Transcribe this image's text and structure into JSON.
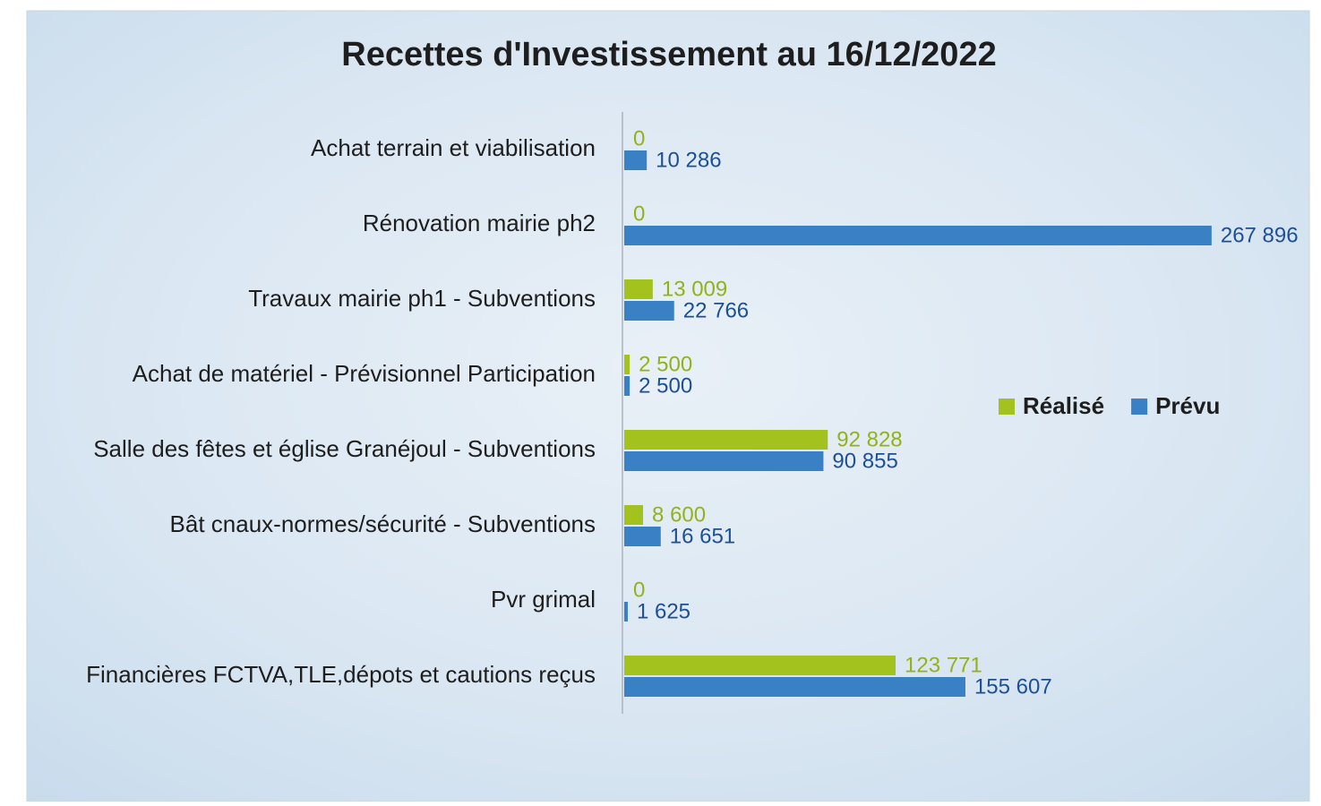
{
  "chart_data": {
    "type": "barh",
    "title": "Recettes d'Investissement au 16/12/2022",
    "categories": [
      "Achat terrain et viabilisation",
      "Rénovation mairie ph2",
      "Travaux mairie ph1 - Subventions",
      "Achat de matériel - Prévisionnel Participation",
      "Salle des fêtes et église Granéjoul - Subventions",
      "Bât cnaux-normes/sécurité - Subventions",
      "Pvr grimal",
      "Financières FCTVA,TLE,dépots et cautions reçus"
    ],
    "series": [
      {
        "name": "Réalisé",
        "color": "#a4c21d",
        "label_color": "#93b21a",
        "values": [
          0,
          0,
          13009,
          2500,
          92828,
          8600,
          0,
          123771
        ],
        "value_labels": [
          "0",
          "0",
          "13 009",
          "2 500",
          "92 828",
          "8 600",
          "0",
          "123 771"
        ]
      },
      {
        "name": "Prévu",
        "color": "#3a80c4",
        "label_color": "#1c4f95",
        "values": [
          10286,
          267896,
          22766,
          2500,
          90855,
          16651,
          1625,
          155607
        ],
        "value_labels": [
          "10 286",
          "267 896",
          "22 766",
          "2 500",
          "90 855",
          "16 651",
          "1 625",
          "155 607"
        ]
      }
    ],
    "xlim": [
      0,
      270000
    ],
    "legend": "right"
  }
}
